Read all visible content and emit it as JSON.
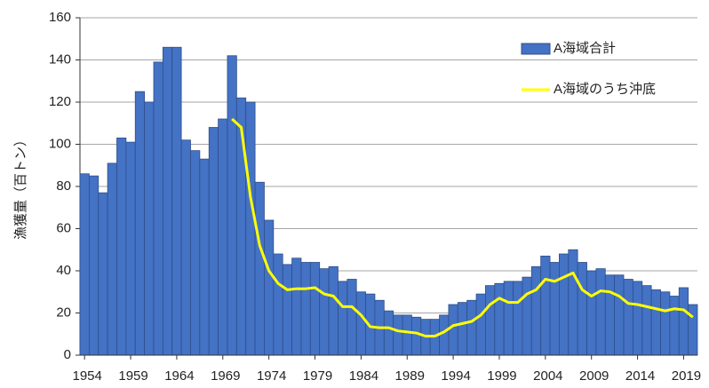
{
  "chart_data": {
    "type": "bar_line",
    "y_label": "漁獲量（百トン）",
    "categories": [
      "1954",
      null,
      null,
      null,
      null,
      "1959",
      null,
      null,
      null,
      null,
      "1964",
      null,
      null,
      null,
      null,
      "1969",
      null,
      null,
      null,
      null,
      "1974",
      null,
      null,
      null,
      null,
      "1979",
      null,
      null,
      null,
      null,
      "1984",
      null,
      null,
      null,
      null,
      "1989",
      null,
      null,
      null,
      null,
      "1994",
      null,
      null,
      null,
      null,
      "1999",
      null,
      null,
      null,
      null,
      "2004",
      null,
      null,
      null,
      null,
      "2009",
      null,
      null,
      null,
      null,
      "2014",
      null,
      null,
      null,
      null,
      "2019",
      null
    ],
    "series": [
      {
        "name": "A海域合計",
        "type": "bar",
        "color": "#4472c4",
        "values": [
          86,
          85,
          77,
          91,
          103,
          101,
          125,
          120,
          139,
          146,
          146,
          102,
          97,
          93,
          108,
          112,
          142,
          122,
          120,
          82,
          64,
          48,
          43,
          46,
          44,
          44,
          41,
          42,
          35,
          36,
          30,
          29,
          26,
          21,
          19,
          19,
          18,
          17,
          17,
          19,
          24,
          25,
          26,
          29,
          33,
          34,
          35,
          35,
          37,
          42,
          47,
          44,
          48,
          50,
          44,
          40,
          41,
          38,
          38,
          36,
          35,
          33,
          31,
          30,
          28,
          32,
          24
        ]
      },
      {
        "name": "A海域のうち沖底",
        "type": "line",
        "color": "#ffff00",
        "values": [
          null,
          null,
          null,
          null,
          null,
          null,
          null,
          null,
          null,
          null,
          null,
          null,
          null,
          null,
          null,
          null,
          112,
          108,
          75,
          52,
          40,
          34,
          31,
          31.5,
          31.5,
          32,
          29,
          28,
          23,
          23,
          19,
          13.5,
          13,
          13,
          11.5,
          11,
          10.5,
          9,
          9,
          11,
          14,
          15,
          16,
          19,
          24,
          27,
          25,
          25,
          29,
          31,
          36,
          35,
          37,
          39,
          31,
          28,
          30.5,
          30,
          28,
          24.5,
          24,
          23,
          22,
          21,
          22,
          21.5,
          18
        ]
      }
    ],
    "ylim": [
      0,
      160
    ],
    "yticks": [
      0,
      20,
      40,
      60,
      80,
      100,
      120,
      140,
      160
    ],
    "grid": true
  }
}
